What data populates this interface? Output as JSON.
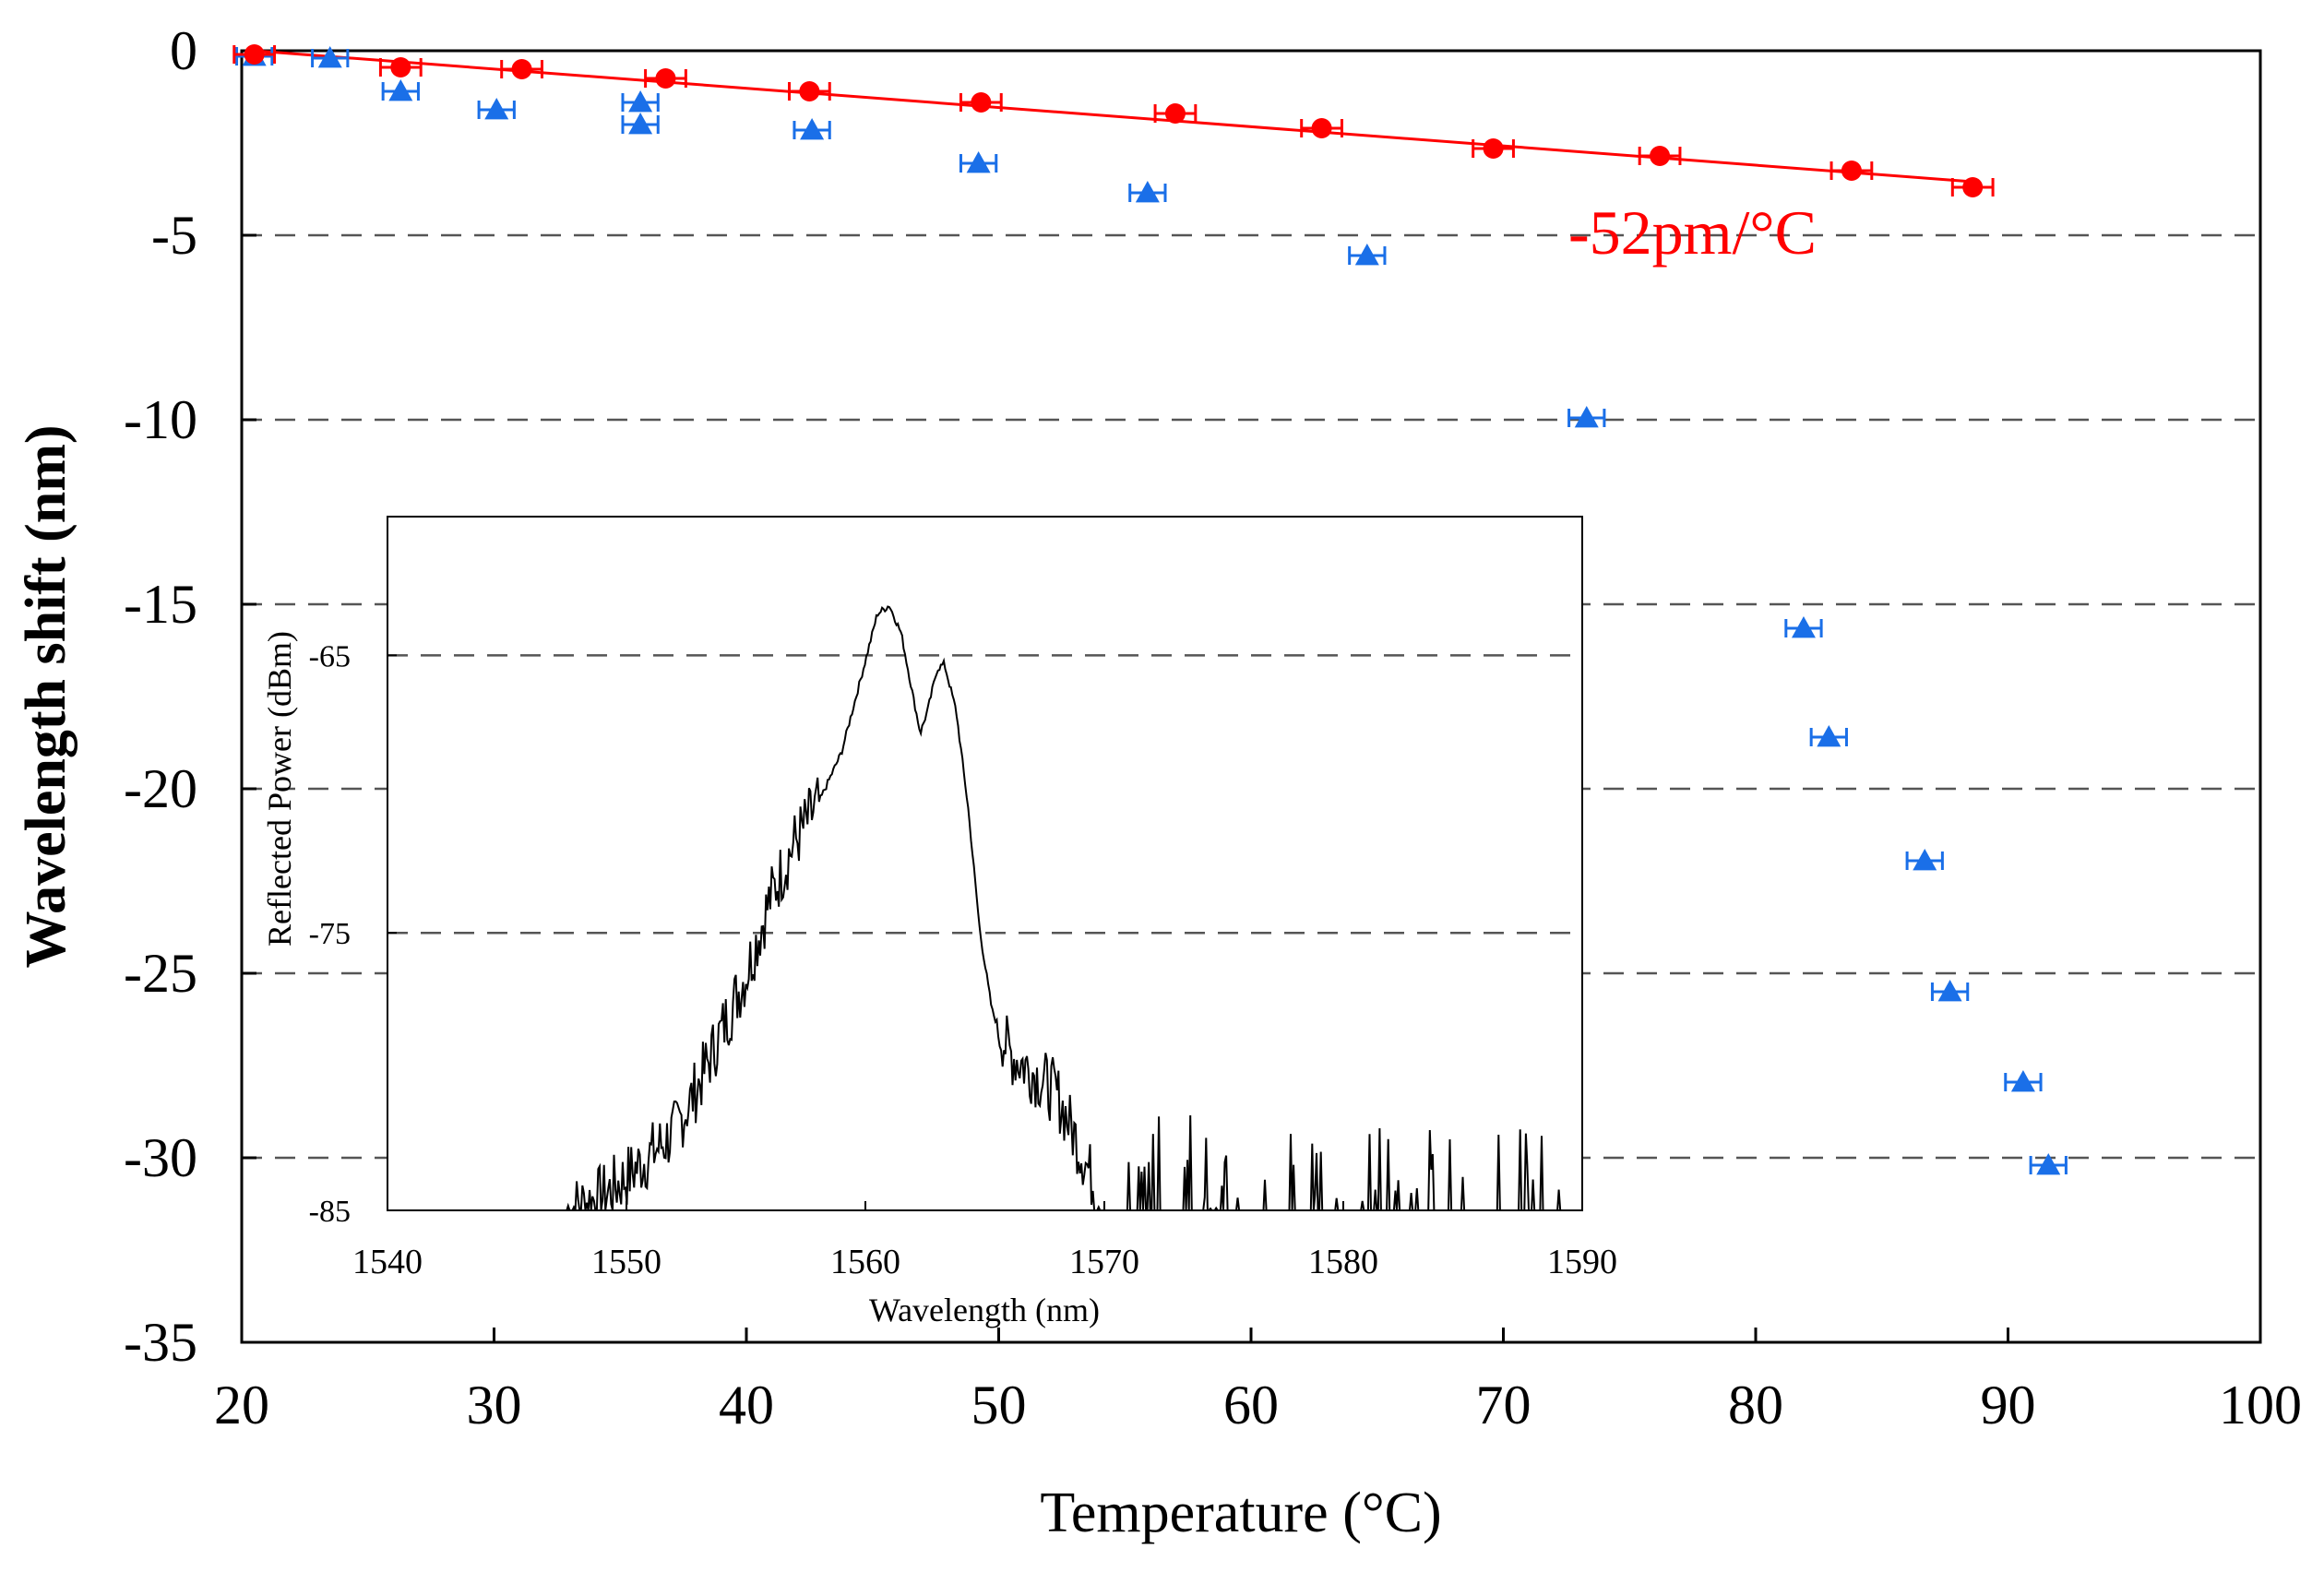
{
  "chart_data": [
    {
      "type": "scatter",
      "role": "main",
      "xlabel": "Temperature (°C)",
      "ylabel": "Wavelength shift (nm)",
      "xlim": [
        20,
        100
      ],
      "ylim": [
        -35,
        0
      ],
      "xticks": [
        "20",
        "30",
        "40",
        "50",
        "60",
        "70",
        "80",
        "90",
        "100"
      ],
      "yticks": [
        "0",
        "-5",
        "-10",
        "-15",
        "-20",
        "-25",
        "-30",
        "-35"
      ],
      "grid": "dashed horizontal at -5,-10,-15,-20,-25,-30",
      "annotation": "-52pm/°C",
      "colors": {
        "red": "#ff0000",
        "blue": "#1a6fe8"
      },
      "series": [
        {
          "name": "red circles",
          "marker": "circle",
          "x": [
            20.5,
            26.3,
            31.1,
            36.8,
            42.5,
            49.3,
            57.0,
            62.8,
            69.6,
            76.2,
            83.8,
            88.6
          ],
          "y": [
            -0.1,
            -0.45,
            -0.5,
            -0.75,
            -1.1,
            -1.4,
            -1.7,
            -2.1,
            -2.65,
            -2.85,
            -3.25,
            -3.7
          ],
          "xerr": 0.8
        },
        {
          "name": "blue triangles",
          "marker": "triangle",
          "x": [
            20.5,
            23.5,
            26.3,
            30.1,
            35.8,
            35.8,
            42.6,
            49.2,
            55.9,
            64.6,
            73.3,
            81.9,
            82.9,
            86.7,
            87.7,
            90.6,
            91.6
          ],
          "y": [
            -0.15,
            -0.2,
            -1.1,
            -1.6,
            -1.4,
            -2.0,
            -2.15,
            -3.05,
            -3.85,
            -5.55,
            -9.95,
            -15.65,
            -18.6,
            -21.95,
            -25.5,
            -27.95,
            -30.2
          ],
          "xerr": 0.7
        },
        {
          "name": "linear fit",
          "type": "line",
          "x": [
            20.5,
            88.6
          ],
          "y": [
            0.0,
            -3.55
          ]
        }
      ]
    },
    {
      "type": "line",
      "role": "inset",
      "xlabel": "Wavelength (nm)",
      "ylabel": "Reflected Power (dBm)",
      "xlim": [
        1540,
        1590
      ],
      "ylim": [
        -85,
        -60
      ],
      "xticks": [
        "1540",
        "1550",
        "1560",
        "1570",
        "1580",
        "1590"
      ],
      "yticks": [
        "-65",
        "-75",
        "-85"
      ],
      "grid": "dashed horizontal at -65,-75",
      "x": [
        1547.5,
        1549,
        1550,
        1551,
        1552,
        1553,
        1554,
        1555,
        1556,
        1557,
        1558,
        1559,
        1560,
        1560.5,
        1561,
        1561.5,
        1562,
        1562.3,
        1562.6,
        1563,
        1563.3,
        1563.8,
        1564.3,
        1564.8,
        1565.3,
        1566,
        1567,
        1568,
        1569,
        1570
      ],
      "y": [
        -85,
        -84.5,
        -83.8,
        -83,
        -82.2,
        -80.5,
        -78.5,
        -76.5,
        -73.8,
        -71.8,
        -70.4,
        -68.5,
        -65.2,
        -63.5,
        -63.2,
        -64.2,
        -66.5,
        -67.8,
        -67.0,
        -65.5,
        -65.3,
        -67.0,
        -70.5,
        -75.0,
        -77.8,
        -79.3,
        -80.0,
        -80.8,
        -82.8,
        -85
      ]
    }
  ]
}
